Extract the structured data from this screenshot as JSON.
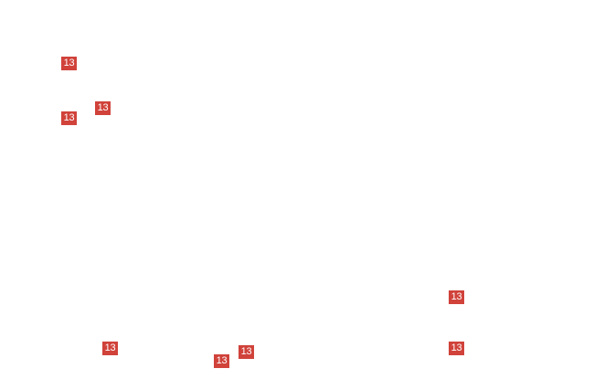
{
  "badges": [
    {
      "label": "13"
    },
    {
      "label": "13"
    },
    {
      "label": "13"
    },
    {
      "label": "13"
    },
    {
      "label": "13"
    },
    {
      "label": "13"
    },
    {
      "label": "13"
    },
    {
      "label": "13"
    }
  ]
}
